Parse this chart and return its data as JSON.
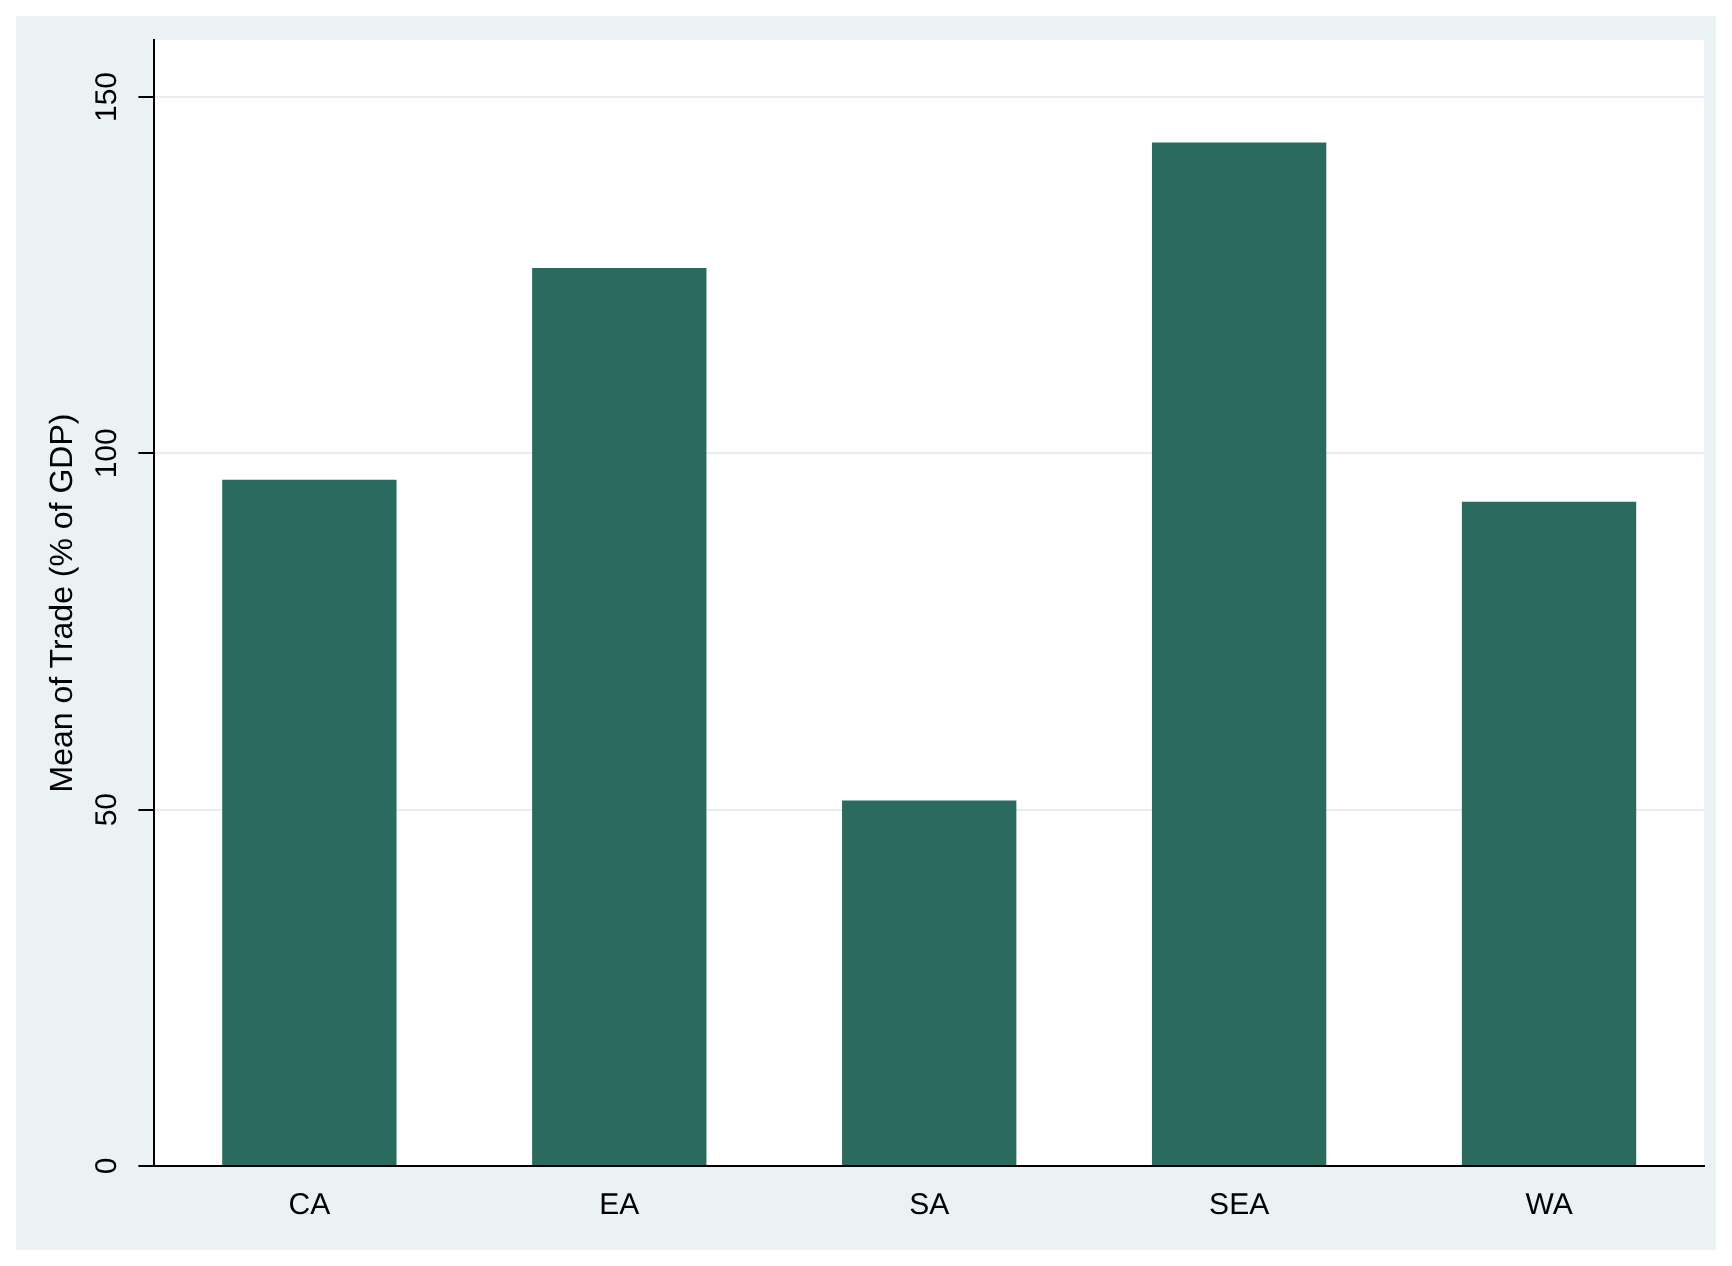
{
  "chart_data": {
    "type": "bar",
    "ylabel": "Mean of Trade (% of GDP)",
    "categories": [
      "CA",
      "EA",
      "SA",
      "SEA",
      "WA"
    ],
    "values": [
      96.3,
      126,
      51.3,
      143.6,
      93.2
    ],
    "color": "#2b6a5f",
    "ylim": [
      0,
      158
    ],
    "yticks": [
      0,
      50,
      100,
      150
    ],
    "grid": "y"
  }
}
